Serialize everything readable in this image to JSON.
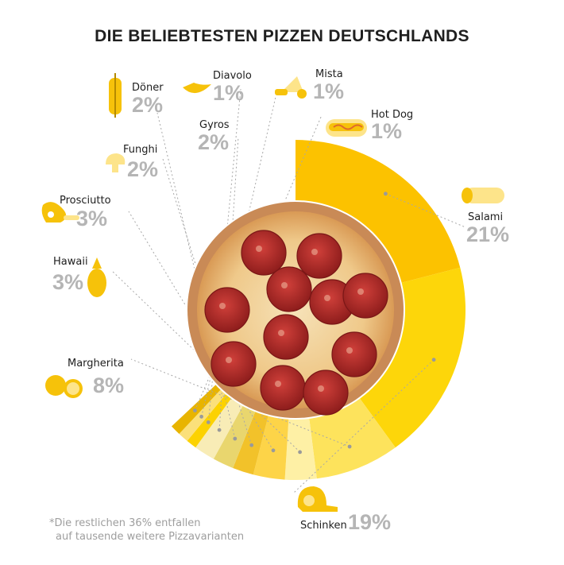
{
  "title": "DIE BELIEBTESTEN PIZZEN DEUTSCHLANDS",
  "footnote": {
    "line1": "*Die restlichen 36% entfallen",
    "line2": "auf tausende weitere Pizzavarianten"
  },
  "chart_data": {
    "type": "pie",
    "title": "DIE BELIEBTESTEN PIZZEN DEUTSCHLANDS",
    "unit": "%",
    "slices": [
      {
        "label": "Salami",
        "value": 21,
        "value_label": "21%",
        "color": "#fcc200",
        "icon": "salami-icon"
      },
      {
        "label": "Schinken",
        "value": 19,
        "value_label": "19%",
        "color": "#fdd60a",
        "icon": "ham-icon"
      },
      {
        "label": "Margherita",
        "value": 8,
        "value_label": "8%",
        "color": "#fde35c",
        "icon": "tomato-icon"
      },
      {
        "label": "Hawaii",
        "value": 3,
        "value_label": "3%",
        "color": "#fef0a5",
        "icon": "pineapple-icon"
      },
      {
        "label": "Prosciutto",
        "value": 3,
        "value_label": "3%",
        "color": "#fdd448",
        "icon": "ham-leg-icon"
      },
      {
        "label": "Funghi",
        "value": 2,
        "value_label": "2%",
        "color": "#f2c22a",
        "icon": "mushroom-icon"
      },
      {
        "label": "Döner",
        "value": 2,
        "value_label": "2%",
        "color": "#e9d66e",
        "icon": "doner-icon"
      },
      {
        "label": "Gyros",
        "value": 2,
        "value_label": "2%",
        "color": "#f8ecb6",
        "icon": "gyros-icon"
      },
      {
        "label": "Diavolo",
        "value": 1,
        "value_label": "1%",
        "color": "#fcd200",
        "icon": "chili-icon"
      },
      {
        "label": "Mista",
        "value": 1,
        "value_label": "1%",
        "color": "#fbe07a",
        "icon": "mista-icon"
      },
      {
        "label": "Hot Dog",
        "value": 1,
        "value_label": "1%",
        "color": "#e8b400",
        "icon": "hotdog-icon"
      }
    ],
    "remainder": {
      "value": 36,
      "shown": false
    },
    "legend": "none",
    "center_image": "pepperoni-pizza"
  }
}
